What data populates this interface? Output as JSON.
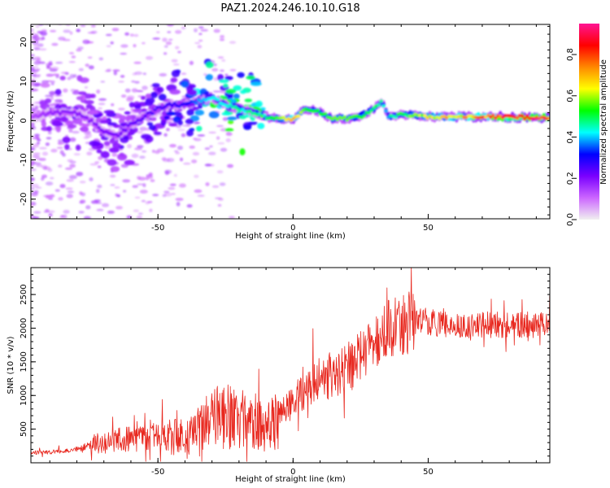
{
  "title": "PAZ1.2024.246.10.10.G18",
  "colorbar": {
    "label": "Normalized spectral amplitude",
    "ticks": [
      "0.0",
      "0.2",
      "0.4",
      "0.6",
      "0.8"
    ],
    "tick_values": [
      0.0,
      0.2,
      0.4,
      0.6,
      0.8
    ],
    "range": [
      0,
      0.95
    ],
    "colormap": [
      "#f0f0f0",
      "#cc66ff",
      "#7a00ff",
      "#0000ff",
      "#00ffff",
      "#00ff00",
      "#ffff00",
      "#ff8800",
      "#ff0000",
      "#ff1493"
    ]
  },
  "chart_data": [
    {
      "type": "heatmap",
      "title": "PAZ1.2024.246.10.10.G18",
      "xlabel": "Height of straight line (km)",
      "ylabel": "Frequency (Hz)",
      "xlim": [
        -97,
        95
      ],
      "ylim": [
        -25,
        24.5
      ],
      "xticks": [
        -50,
        0,
        50
      ],
      "yticks": [
        -20,
        -10,
        0,
        10,
        20
      ],
      "ridge": {
        "x": [
          -95,
          -90,
          -85,
          -80,
          -75,
          -70,
          -65,
          -60,
          -55,
          -50,
          -45,
          -40,
          -35,
          -30,
          -25,
          -20,
          -15,
          -10,
          -5,
          0,
          5,
          10,
          15,
          20,
          25,
          30,
          33,
          35,
          40,
          45,
          50,
          55,
          60,
          65,
          70,
          75,
          80,
          85,
          90,
          95
        ],
        "y": [
          1,
          2,
          2,
          2,
          0,
          -3,
          -4,
          -1,
          1,
          3,
          4,
          4,
          5,
          6,
          4,
          3,
          2,
          1,
          0.5,
          0.5,
          3,
          2,
          0.5,
          0.5,
          1,
          3,
          5,
          1,
          1.5,
          1.5,
          1,
          1,
          1,
          1,
          1,
          1,
          0.8,
          0.8,
          0.8,
          0.8
        ],
        "amplitude": [
          0.15,
          0.18,
          0.2,
          0.2,
          0.2,
          0.22,
          0.22,
          0.24,
          0.25,
          0.26,
          0.28,
          0.3,
          0.4,
          0.45,
          0.45,
          0.5,
          0.45,
          0.5,
          0.6,
          0.75,
          0.55,
          0.55,
          0.6,
          0.6,
          0.55,
          0.5,
          0.5,
          0.45,
          0.55,
          0.6,
          0.65,
          0.7,
          0.7,
          0.75,
          0.8,
          0.85,
          0.9,
          0.92,
          0.92,
          0.9
        ]
      }
    },
    {
      "type": "line",
      "xlabel": "Height of straight line (km)",
      "ylabel": "SNR (10 * v/v)",
      "xlim": [
        -97,
        95
      ],
      "ylim": [
        0,
        2900
      ],
      "xticks": [
        -50,
        0,
        50
      ],
      "yticks": [
        500,
        1000,
        1500,
        2000,
        2500
      ],
      "color": "#e8271e",
      "x": [
        -97,
        -90,
        -85,
        -80,
        -75,
        -70,
        -65,
        -60,
        -55,
        -50,
        -45,
        -40,
        -35,
        -30,
        -25,
        -20,
        -15,
        -10,
        -5,
        0,
        5,
        10,
        15,
        20,
        25,
        30,
        35,
        40,
        45,
        50,
        55,
        60,
        65,
        70,
        75,
        80,
        85,
        90,
        95
      ],
      "y": [
        150,
        160,
        180,
        200,
        260,
        300,
        340,
        360,
        380,
        380,
        420,
        380,
        500,
        650,
        700,
        600,
        650,
        500,
        700,
        900,
        1100,
        1300,
        1300,
        1400,
        1600,
        1800,
        2000,
        2050,
        2100,
        2100,
        2050,
        2050,
        2000,
        2050,
        2050,
        2050,
        2050,
        2050,
        2100
      ]
    }
  ]
}
